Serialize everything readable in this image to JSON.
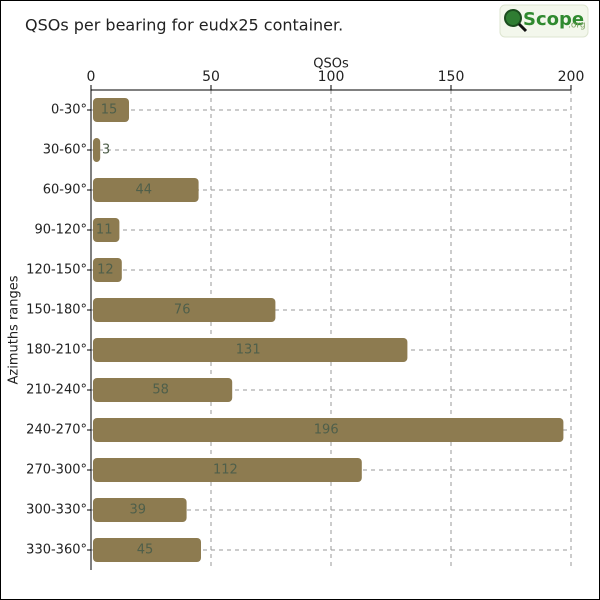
{
  "chart_data": {
    "type": "bar",
    "orientation": "horizontal",
    "title": "QSOs per bearing for eudx25 container.",
    "logo": {
      "text": "Scope",
      "suffix": ".org"
    },
    "xlabel": "QSOs",
    "ylabel": "Azimuths ranges",
    "categories": [
      "0-30°",
      "30-60°",
      "60-90°",
      "90-120°",
      "120-150°",
      "150-180°",
      "180-210°",
      "210-240°",
      "240-270°",
      "270-300°",
      "300-330°",
      "330-360°"
    ],
    "values": [
      15,
      3,
      44,
      11,
      12,
      76,
      131,
      58,
      196,
      112,
      39,
      45
    ],
    "color": "#8d7b50",
    "xlim": [
      0,
      200
    ],
    "xticks": [
      0,
      50,
      100,
      150,
      200
    ],
    "grid": true
  }
}
